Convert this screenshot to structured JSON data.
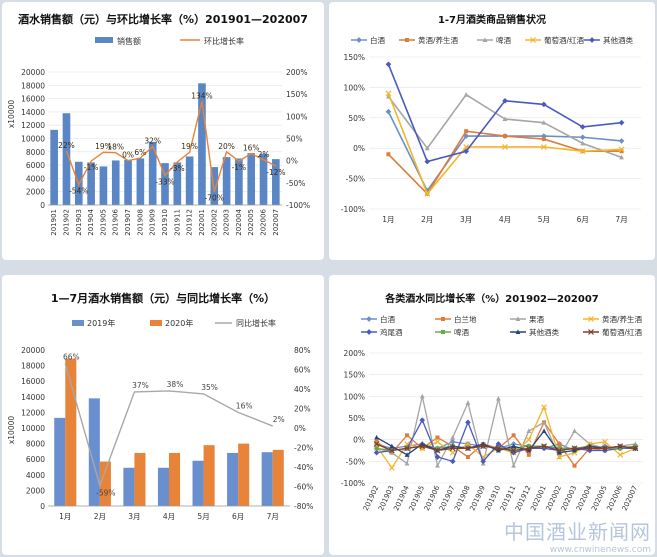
{
  "watermark": {
    "text": "中国酒业新闻网",
    "url": "www.cnwinenews.com"
  },
  "chart_data": [
    {
      "type": "bar",
      "title": "酒水销售额（元）与环比增长率（%）201901—202007",
      "ylabel": "x10000",
      "ylim": [
        0,
        20000
      ],
      "y2lim": [
        -100,
        200
      ],
      "y_ticks": [
        "0",
        "2000",
        "4000",
        "6000",
        "8000",
        "10000",
        "12000",
        "14000",
        "16000",
        "18000",
        "20000"
      ],
      "y2_ticks": [
        "-100%",
        "-50%",
        "0%",
        "50%",
        "100%",
        "150%",
        "200%"
      ],
      "categories": [
        "201901",
        "201902",
        "201903",
        "201904",
        "201905",
        "201906",
        "201907",
        "201908",
        "201909",
        "201910",
        "201911",
        "201912",
        "202001",
        "202002",
        "202003",
        "202004",
        "202005",
        "202006",
        "202007"
      ],
      "series": [
        {
          "name": "销售额",
          "kind": "bar",
          "color": "#5b86c5",
          "values": [
            11300,
            13800,
            6500,
            6400,
            5800,
            6700,
            6800,
            7000,
            9500,
            6300,
            6400,
            7300,
            18300,
            5700,
            7200,
            7000,
            7800,
            7700,
            6900
          ]
        },
        {
          "name": "环比增长率",
          "kind": "line",
          "color": "#e8833a",
          "values": [
            null,
            22,
            -54,
            -1,
            19,
            18,
            0,
            6,
            32,
            -33,
            -3,
            19,
            134,
            -70,
            20,
            -1,
            16,
            2,
            -12
          ]
        }
      ],
      "data_labels": [
        "",
        "22%",
        "-54%",
        "-1%",
        "19%",
        "18%",
        "0%",
        "6%",
        "32%",
        "-33%",
        "-3%",
        "19%",
        "134%",
        "-70%",
        "20%",
        "-1%",
        "16%",
        "2%",
        "-12%"
      ]
    },
    {
      "type": "line",
      "title": "1-7月酒类商品销售状况",
      "ylim": [
        -100,
        150
      ],
      "y_ticks": [
        "-100%",
        "-50%",
        "0%",
        "50%",
        "100%",
        "150%"
      ],
      "categories": [
        "1月",
        "2月",
        "3月",
        "4月",
        "5月",
        "6月",
        "7月"
      ],
      "series": [
        {
          "name": "白酒",
          "color": "#6b8fca",
          "values": [
            60,
            -70,
            20,
            20,
            20,
            18,
            12
          ]
        },
        {
          "name": "黄酒/养生酒",
          "color": "#e07b39",
          "values": [
            -10,
            -75,
            28,
            20,
            15,
            -5,
            -5
          ]
        },
        {
          "name": "啤酒",
          "color": "#a5a5a5",
          "values": [
            85,
            0,
            88,
            48,
            42,
            8,
            -15
          ]
        },
        {
          "name": "葡萄酒/红酒",
          "color": "#f2b62c",
          "values": [
            90,
            -75,
            2,
            2,
            2,
            -5,
            -2
          ]
        },
        {
          "name": "其他酒类",
          "color": "#4a5bbf",
          "values": [
            138,
            -22,
            -5,
            78,
            72,
            35,
            42
          ]
        }
      ]
    },
    {
      "type": "bar",
      "title": "1—7月酒水销售额（元）与同比增长率（%）",
      "ylabel": "x10000",
      "ylim": [
        0,
        20000
      ],
      "y2lim": [
        -80,
        80
      ],
      "y_ticks": [
        "0",
        "2000",
        "4000",
        "6000",
        "8000",
        "10000",
        "12000",
        "14000",
        "16000",
        "18000",
        "20000"
      ],
      "y2_ticks": [
        "-80%",
        "-60%",
        "-40%",
        "-20%",
        "0%",
        "20%",
        "40%",
        "60%",
        "80%"
      ],
      "categories": [
        "1月",
        "2月",
        "3月",
        "4月",
        "5月",
        "6月",
        "7月"
      ],
      "series": [
        {
          "name": "2019年",
          "kind": "bar",
          "color": "#6a8fce",
          "values": [
            11300,
            13800,
            4900,
            4900,
            5800,
            6800,
            6900
          ]
        },
        {
          "name": "2020年",
          "kind": "bar",
          "color": "#e8833a",
          "values": [
            18900,
            5700,
            6800,
            6800,
            7800,
            8000,
            7200
          ]
        },
        {
          "name": "同比增长率",
          "kind": "line",
          "color": "#a8a8a8",
          "values": [
            66,
            -59,
            37,
            38,
            35,
            16,
            2
          ]
        }
      ],
      "data_labels": [
        "66%",
        "-59%",
        "37%",
        "38%",
        "35%",
        "16%",
        "2%"
      ]
    },
    {
      "type": "line",
      "title": "各类酒水同比增长率（%）201902—202007",
      "ylim": [
        -100,
        200
      ],
      "y_ticks": [
        "-100%",
        "-50%",
        "0%",
        "50%",
        "100%",
        "150%",
        "200%"
      ],
      "categories": [
        "201902",
        "201903",
        "201904",
        "201905",
        "201906",
        "201907",
        "201908",
        "201909",
        "201910",
        "201911",
        "201912",
        "202001",
        "202002",
        "202003",
        "202004",
        "202005",
        "202006",
        "202007"
      ],
      "series": [
        {
          "name": "白酒",
          "color": "#6b8fca",
          "values": [
            -10,
            -20,
            -15,
            -10,
            -20,
            -5,
            -10,
            -15,
            -20,
            -10,
            -15,
            -20,
            -10,
            -25,
            -20,
            -15,
            -20,
            -15
          ]
        },
        {
          "name": "白兰地",
          "color": "#e07b39",
          "values": [
            -5,
            -30,
            10,
            -20,
            5,
            -15,
            -40,
            -10,
            -20,
            10,
            -35,
            40,
            -10,
            -60,
            -20,
            -25,
            -20,
            -15
          ]
        },
        {
          "name": "果酒",
          "color": "#a5a5a5",
          "values": [
            -20,
            -30,
            -55,
            100,
            -60,
            5,
            85,
            -55,
            95,
            -60,
            20,
            40,
            -40,
            20,
            -10,
            -20,
            -15,
            -10
          ]
        },
        {
          "name": "黄酒/养生酒",
          "color": "#f2b62c",
          "values": [
            -15,
            -65,
            -10,
            -20,
            -5,
            -30,
            -10,
            -40,
            -20,
            -30,
            0,
            75,
            -40,
            -30,
            -10,
            -5,
            -35,
            -20
          ]
        },
        {
          "name": "鸡尾酒",
          "color": "#4a5bbf",
          "values": [
            -30,
            -25,
            -20,
            45,
            -40,
            -50,
            40,
            -50,
            -10,
            -30,
            -20,
            -20,
            -25,
            -20,
            -25,
            -25,
            -20,
            -20
          ]
        },
        {
          "name": "啤酒",
          "color": "#6aa84f",
          "values": [
            -20,
            -25,
            -20,
            -15,
            -20,
            -15,
            -20,
            -15,
            -20,
            -20,
            -15,
            -15,
            -20,
            -20,
            -15,
            -20,
            -20,
            -15
          ]
        },
        {
          "name": "其他酒类",
          "color": "#264478",
          "values": [
            5,
            -15,
            -35,
            -10,
            -25,
            -15,
            -20,
            -10,
            -25,
            -15,
            -25,
            20,
            -30,
            -25,
            -15,
            -20,
            -15,
            -20
          ]
        },
        {
          "name": "葡萄酒/红酒",
          "color": "#7f3f2f",
          "values": [
            -10,
            -25,
            -20,
            -15,
            -25,
            -20,
            -20,
            -15,
            -20,
            -25,
            -20,
            -15,
            -25,
            -20,
            -20,
            -20,
            -15,
            -20
          ]
        }
      ]
    }
  ]
}
